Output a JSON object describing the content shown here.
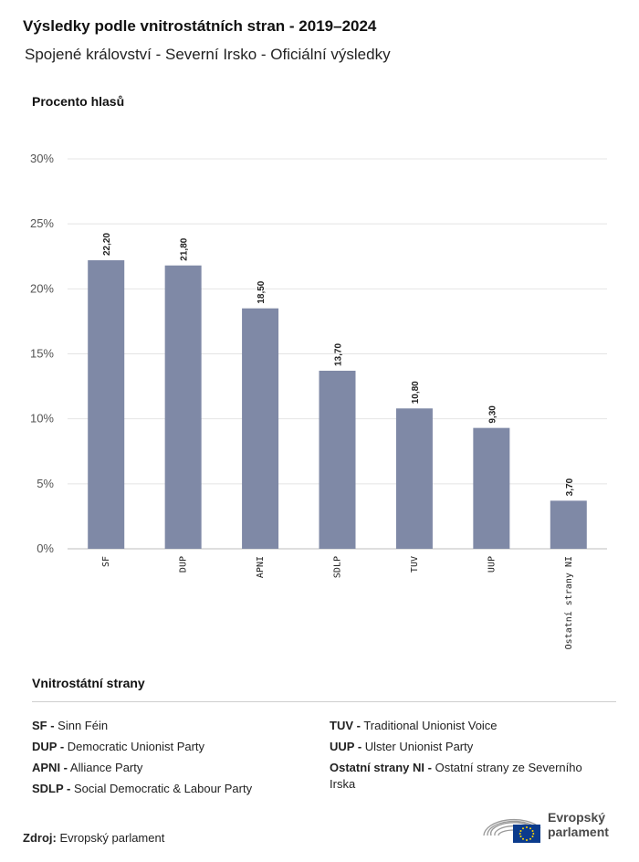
{
  "header": {
    "title": "Výsledky podle vnitrostátních stran - 2019–2024",
    "subtitle": "Spojené království - Severní Irsko - Oficiální výsledky"
  },
  "chart_data": {
    "type": "bar",
    "ylabel": "Procento hlasů",
    "ylim": [
      0,
      30
    ],
    "yticks": [
      "0%",
      "5%",
      "10%",
      "15%",
      "20%",
      "25%",
      "30%"
    ],
    "categories": [
      "SF",
      "DUP",
      "APNI",
      "SDLP",
      "TUV",
      "UUP",
      "Ostatní strany NI"
    ],
    "values": [
      22.2,
      21.8,
      18.5,
      13.7,
      10.8,
      9.3,
      3.7
    ],
    "data_labels": [
      "22,20",
      "21,80",
      "18,50",
      "13,70",
      "10,80",
      "9,30",
      "3,70"
    ],
    "bar_color": "#7f89a6",
    "grid": true
  },
  "legend": {
    "title": "Vnitrostátní strany",
    "left": [
      {
        "abbr": "SF -",
        "name": "Sinn Féin"
      },
      {
        "abbr": "DUP -",
        "name": "Democratic Unionist Party"
      },
      {
        "abbr": "APNI -",
        "name": "Alliance Party"
      },
      {
        "abbr": "SDLP -",
        "name": "Social Democratic & Labour Party"
      }
    ],
    "right": [
      {
        "abbr": "TUV -",
        "name": "Traditional Unionist Voice"
      },
      {
        "abbr": "UUP -",
        "name": "Ulster Unionist Party"
      },
      {
        "abbr": "Ostatní strany NI -",
        "name": "Ostatní strany ze Severního Irska"
      }
    ]
  },
  "footer": {
    "source_label": "Zdroj:",
    "source_value": "Evropský parlament",
    "logo_line1": "Evropský",
    "logo_line2": "parlament"
  }
}
